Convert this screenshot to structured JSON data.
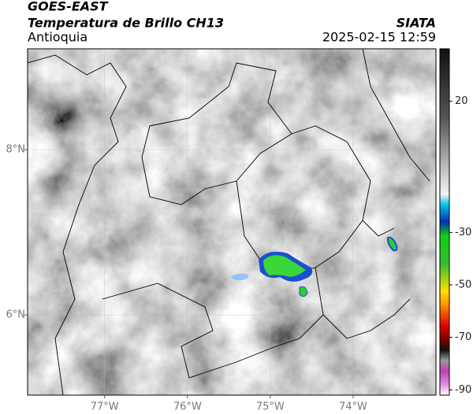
{
  "header": {
    "satellite": "GOES-EAST",
    "product": "Temperatura de Brillo CH13",
    "region": "Antioquia",
    "source": "SIATA",
    "timestamp": "2025-02-15 12:59"
  },
  "map": {
    "lon_range": [
      -77.93,
      -73
    ],
    "lat_range": [
      5.03,
      9.22
    ],
    "lon_ticks": [
      {
        "value": -77,
        "label": "77°W"
      },
      {
        "value": -76,
        "label": "76°W"
      },
      {
        "value": -75,
        "label": "75°W"
      },
      {
        "value": -74,
        "label": "74°W"
      }
    ],
    "lat_ticks": [
      {
        "value": 8,
        "label": "8°N"
      },
      {
        "value": 6,
        "label": "6°N"
      }
    ]
  },
  "colorbar": {
    "range": [
      -92,
      40
    ],
    "ticks": [
      20,
      -30,
      -50,
      -70,
      -90
    ]
  }
}
